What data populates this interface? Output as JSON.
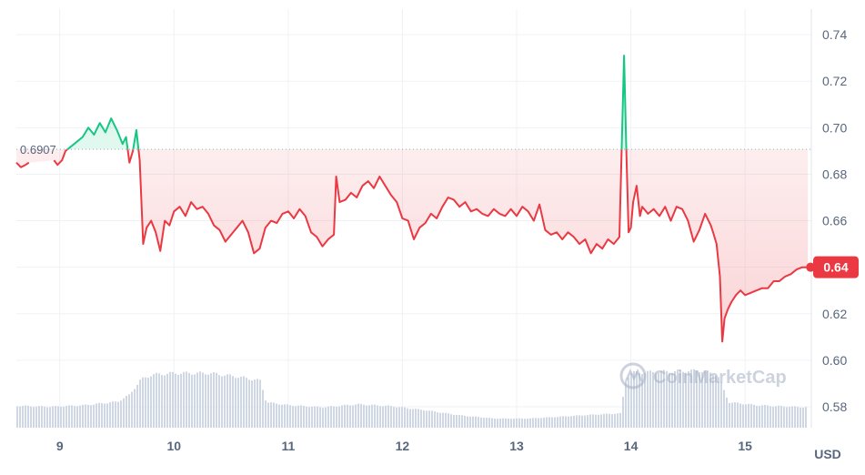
{
  "colors": {
    "up": "#16c784",
    "down": "#ea3943",
    "grid": "#eff2f5",
    "volume": "#cfd6e4",
    "axis_text": "#58667e",
    "baseline_text": "#58667e",
    "watermark": "#a6b0c3"
  },
  "watermark_text": "CoinMarketCap",
  "chart_data": {
    "type": "line",
    "x_unit": "day",
    "x_ticks": [
      9,
      10,
      11,
      12,
      13,
      14,
      15
    ],
    "x_tick_labels": [
      "9",
      "10",
      "11",
      "12",
      "13",
      "14",
      "15"
    ],
    "xlim": [
      8.62,
      15.58
    ],
    "ylim": [
      0.571,
      0.751
    ],
    "y_ticks": [
      0.58,
      0.6,
      0.62,
      0.64,
      0.66,
      0.68,
      0.7,
      0.72,
      0.74
    ],
    "y_tick_labels": [
      "0.58",
      "0.60",
      "0.62",
      "0.64",
      "0.66",
      "0.68",
      "0.70",
      "0.72",
      "0.74"
    ],
    "y_axis_side": "right",
    "unit_label": "USD",
    "baseline": {
      "value": 0.6907,
      "label": "0.6907"
    },
    "current_price": {
      "value": 0.64,
      "label": "0.64"
    },
    "grid": true,
    "price_series": {
      "name": "",
      "points": [
        [
          8.62,
          0.685
        ],
        [
          8.66,
          0.683
        ],
        [
          8.7,
          0.684
        ],
        [
          8.73,
          0.685
        ],
        [
          8.95,
          0.686
        ],
        [
          8.98,
          0.684
        ],
        [
          9.02,
          0.686
        ],
        [
          9.05,
          0.69
        ],
        [
          9.1,
          0.692
        ],
        [
          9.15,
          0.694
        ],
        [
          9.2,
          0.696
        ],
        [
          9.25,
          0.7
        ],
        [
          9.3,
          0.697
        ],
        [
          9.35,
          0.702
        ],
        [
          9.4,
          0.698
        ],
        [
          9.45,
          0.704
        ],
        [
          9.5,
          0.699
        ],
        [
          9.55,
          0.693
        ],
        [
          9.58,
          0.696
        ],
        [
          9.61,
          0.685
        ],
        [
          9.64,
          0.69
        ],
        [
          9.67,
          0.699
        ],
        [
          9.7,
          0.686
        ],
        [
          9.73,
          0.65
        ],
        [
          9.76,
          0.657
        ],
        [
          9.8,
          0.66
        ],
        [
          9.84,
          0.655
        ],
        [
          9.88,
          0.647
        ],
        [
          9.92,
          0.66
        ],
        [
          9.96,
          0.658
        ],
        [
          10.0,
          0.664
        ],
        [
          10.05,
          0.666
        ],
        [
          10.1,
          0.662
        ],
        [
          10.15,
          0.668
        ],
        [
          10.2,
          0.665
        ],
        [
          10.25,
          0.666
        ],
        [
          10.3,
          0.663
        ],
        [
          10.35,
          0.658
        ],
        [
          10.4,
          0.656
        ],
        [
          10.45,
          0.651
        ],
        [
          10.5,
          0.654
        ],
        [
          10.55,
          0.657
        ],
        [
          10.6,
          0.66
        ],
        [
          10.65,
          0.655
        ],
        [
          10.7,
          0.646
        ],
        [
          10.75,
          0.648
        ],
        [
          10.8,
          0.657
        ],
        [
          10.85,
          0.66
        ],
        [
          10.9,
          0.659
        ],
        [
          10.95,
          0.663
        ],
        [
          11.0,
          0.664
        ],
        [
          11.05,
          0.661
        ],
        [
          11.1,
          0.665
        ],
        [
          11.15,
          0.662
        ],
        [
          11.2,
          0.655
        ],
        [
          11.25,
          0.653
        ],
        [
          11.3,
          0.649
        ],
        [
          11.35,
          0.652
        ],
        [
          11.4,
          0.654
        ],
        [
          11.42,
          0.679
        ],
        [
          11.45,
          0.668
        ],
        [
          11.5,
          0.669
        ],
        [
          11.55,
          0.672
        ],
        [
          11.6,
          0.67
        ],
        [
          11.65,
          0.675
        ],
        [
          11.7,
          0.677
        ],
        [
          11.75,
          0.674
        ],
        [
          11.8,
          0.679
        ],
        [
          11.85,
          0.675
        ],
        [
          11.9,
          0.671
        ],
        [
          11.95,
          0.668
        ],
        [
          12.0,
          0.661
        ],
        [
          12.05,
          0.66
        ],
        [
          12.1,
          0.652
        ],
        [
          12.15,
          0.657
        ],
        [
          12.2,
          0.659
        ],
        [
          12.25,
          0.663
        ],
        [
          12.3,
          0.661
        ],
        [
          12.35,
          0.666
        ],
        [
          12.4,
          0.67
        ],
        [
          12.45,
          0.669
        ],
        [
          12.5,
          0.666
        ],
        [
          12.55,
          0.668
        ],
        [
          12.6,
          0.664
        ],
        [
          12.65,
          0.665
        ],
        [
          12.7,
          0.663
        ],
        [
          12.75,
          0.662
        ],
        [
          12.8,
          0.665
        ],
        [
          12.85,
          0.663
        ],
        [
          12.9,
          0.662
        ],
        [
          12.95,
          0.665
        ],
        [
          13.0,
          0.662
        ],
        [
          13.05,
          0.666
        ],
        [
          13.1,
          0.664
        ],
        [
          13.15,
          0.66
        ],
        [
          13.2,
          0.667
        ],
        [
          13.25,
          0.656
        ],
        [
          13.3,
          0.654
        ],
        [
          13.35,
          0.655
        ],
        [
          13.4,
          0.652
        ],
        [
          13.45,
          0.655
        ],
        [
          13.5,
          0.653
        ],
        [
          13.55,
          0.65
        ],
        [
          13.6,
          0.652
        ],
        [
          13.65,
          0.646
        ],
        [
          13.7,
          0.65
        ],
        [
          13.75,
          0.648
        ],
        [
          13.8,
          0.652
        ],
        [
          13.85,
          0.65
        ],
        [
          13.9,
          0.653
        ],
        [
          13.92,
          0.691
        ],
        [
          13.94,
          0.731
        ],
        [
          13.96,
          0.69
        ],
        [
          13.98,
          0.655
        ],
        [
          14.0,
          0.657
        ],
        [
          14.02,
          0.668
        ],
        [
          14.05,
          0.675
        ],
        [
          14.08,
          0.662
        ],
        [
          14.1,
          0.666
        ],
        [
          14.15,
          0.663
        ],
        [
          14.2,
          0.665
        ],
        [
          14.25,
          0.662
        ],
        [
          14.3,
          0.666
        ],
        [
          14.35,
          0.66
        ],
        [
          14.4,
          0.666
        ],
        [
          14.45,
          0.665
        ],
        [
          14.5,
          0.66
        ],
        [
          14.55,
          0.651
        ],
        [
          14.6,
          0.656
        ],
        [
          14.65,
          0.663
        ],
        [
          14.7,
          0.658
        ],
        [
          14.72,
          0.655
        ],
        [
          14.75,
          0.65
        ],
        [
          14.78,
          0.636
        ],
        [
          14.8,
          0.608
        ],
        [
          14.82,
          0.618
        ],
        [
          14.85,
          0.622
        ],
        [
          14.88,
          0.625
        ],
        [
          14.92,
          0.628
        ],
        [
          14.96,
          0.63
        ],
        [
          15.0,
          0.628
        ],
        [
          15.05,
          0.629
        ],
        [
          15.1,
          0.63
        ],
        [
          15.15,
          0.631
        ],
        [
          15.2,
          0.631
        ],
        [
          15.25,
          0.634
        ],
        [
          15.3,
          0.634
        ],
        [
          15.35,
          0.636
        ],
        [
          15.4,
          0.637
        ],
        [
          15.45,
          0.639
        ],
        [
          15.5,
          0.64
        ],
        [
          15.55,
          0.64
        ]
      ]
    },
    "volume_series": {
      "name": "",
      "points": [
        [
          8.62,
          0.215
        ],
        [
          8.9,
          0.205
        ],
        [
          9.2,
          0.22
        ],
        [
          9.5,
          0.255
        ],
        [
          9.6,
          0.32
        ],
        [
          9.7,
          0.47
        ],
        [
          9.8,
          0.52
        ],
        [
          10.0,
          0.535
        ],
        [
          10.3,
          0.535
        ],
        [
          10.55,
          0.5
        ],
        [
          10.75,
          0.46
        ],
        [
          10.8,
          0.25
        ],
        [
          11.0,
          0.22
        ],
        [
          11.3,
          0.2
        ],
        [
          11.6,
          0.23
        ],
        [
          11.9,
          0.21
        ],
        [
          12.2,
          0.17
        ],
        [
          12.5,
          0.12
        ],
        [
          12.8,
          0.09
        ],
        [
          13.1,
          0.09
        ],
        [
          13.4,
          0.11
        ],
        [
          13.7,
          0.13
        ],
        [
          13.9,
          0.14
        ],
        [
          13.95,
          0.48
        ],
        [
          14.0,
          0.54
        ],
        [
          14.3,
          0.55
        ],
        [
          14.6,
          0.56
        ],
        [
          14.75,
          0.52
        ],
        [
          14.85,
          0.25
        ],
        [
          15.1,
          0.22
        ],
        [
          15.3,
          0.21
        ],
        [
          15.55,
          0.2
        ]
      ]
    }
  }
}
